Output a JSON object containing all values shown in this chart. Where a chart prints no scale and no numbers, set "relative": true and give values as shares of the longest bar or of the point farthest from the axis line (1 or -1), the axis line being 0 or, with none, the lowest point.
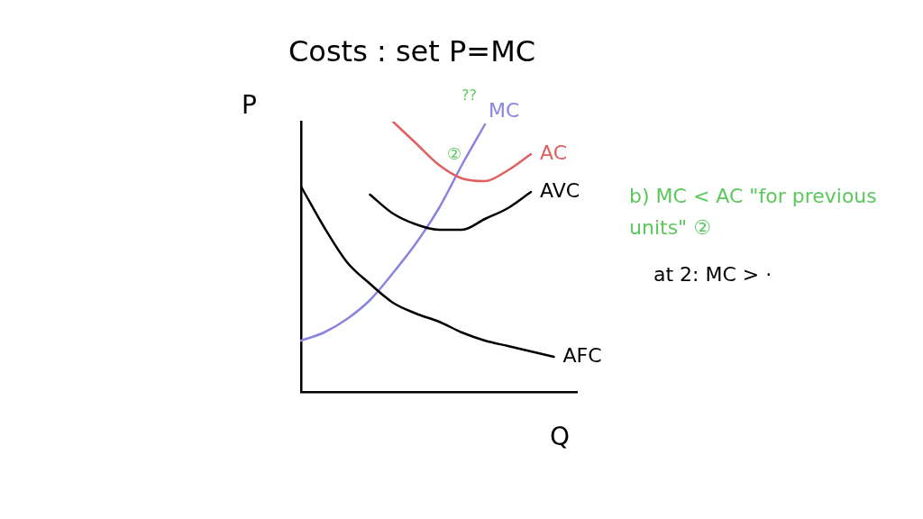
{
  "chart_data": {
    "type": "line",
    "title": "Costs : set P=MC",
    "xlabel": "Q",
    "ylabel": "P",
    "relative": true,
    "legend": false,
    "grid": false,
    "marker": "none",
    "categories": [
      null,
      null,
      null,
      null,
      null,
      null,
      null,
      null,
      null,
      null,
      null,
      null,
      null
    ],
    "series": [
      {
        "name": "AFC",
        "color": "#000000",
        "values": [
          0.76,
          0.61,
          0.48,
          0.4,
          0.33,
          0.29,
          0.26,
          0.22,
          0.19,
          0.17,
          0.15,
          0.13,
          null
        ]
      },
      {
        "name": "AVC",
        "color": "#000000",
        "values": [
          null,
          null,
          null,
          0.73,
          0.66,
          0.62,
          0.6,
          0.6,
          0.64,
          0.68,
          0.74,
          null,
          null
        ]
      },
      {
        "name": "AC",
        "color": "#e06060",
        "values": [
          null,
          null,
          null,
          null,
          1,
          0.92,
          0.84,
          0.79,
          0.78,
          0.82,
          0.88,
          null,
          null
        ]
      },
      {
        "name": "MC",
        "color": "#8a84e0",
        "values": [
          0.19,
          0.22,
          0.27,
          0.34,
          0.44,
          0.55,
          0.68,
          0.84,
          0.99,
          null,
          null,
          null,
          null
        ]
      }
    ],
    "annotations": [
      "??",
      "②",
      "b) MC < AC \"for previous units\" ②",
      "at 2: MC > ·"
    ]
  }
}
